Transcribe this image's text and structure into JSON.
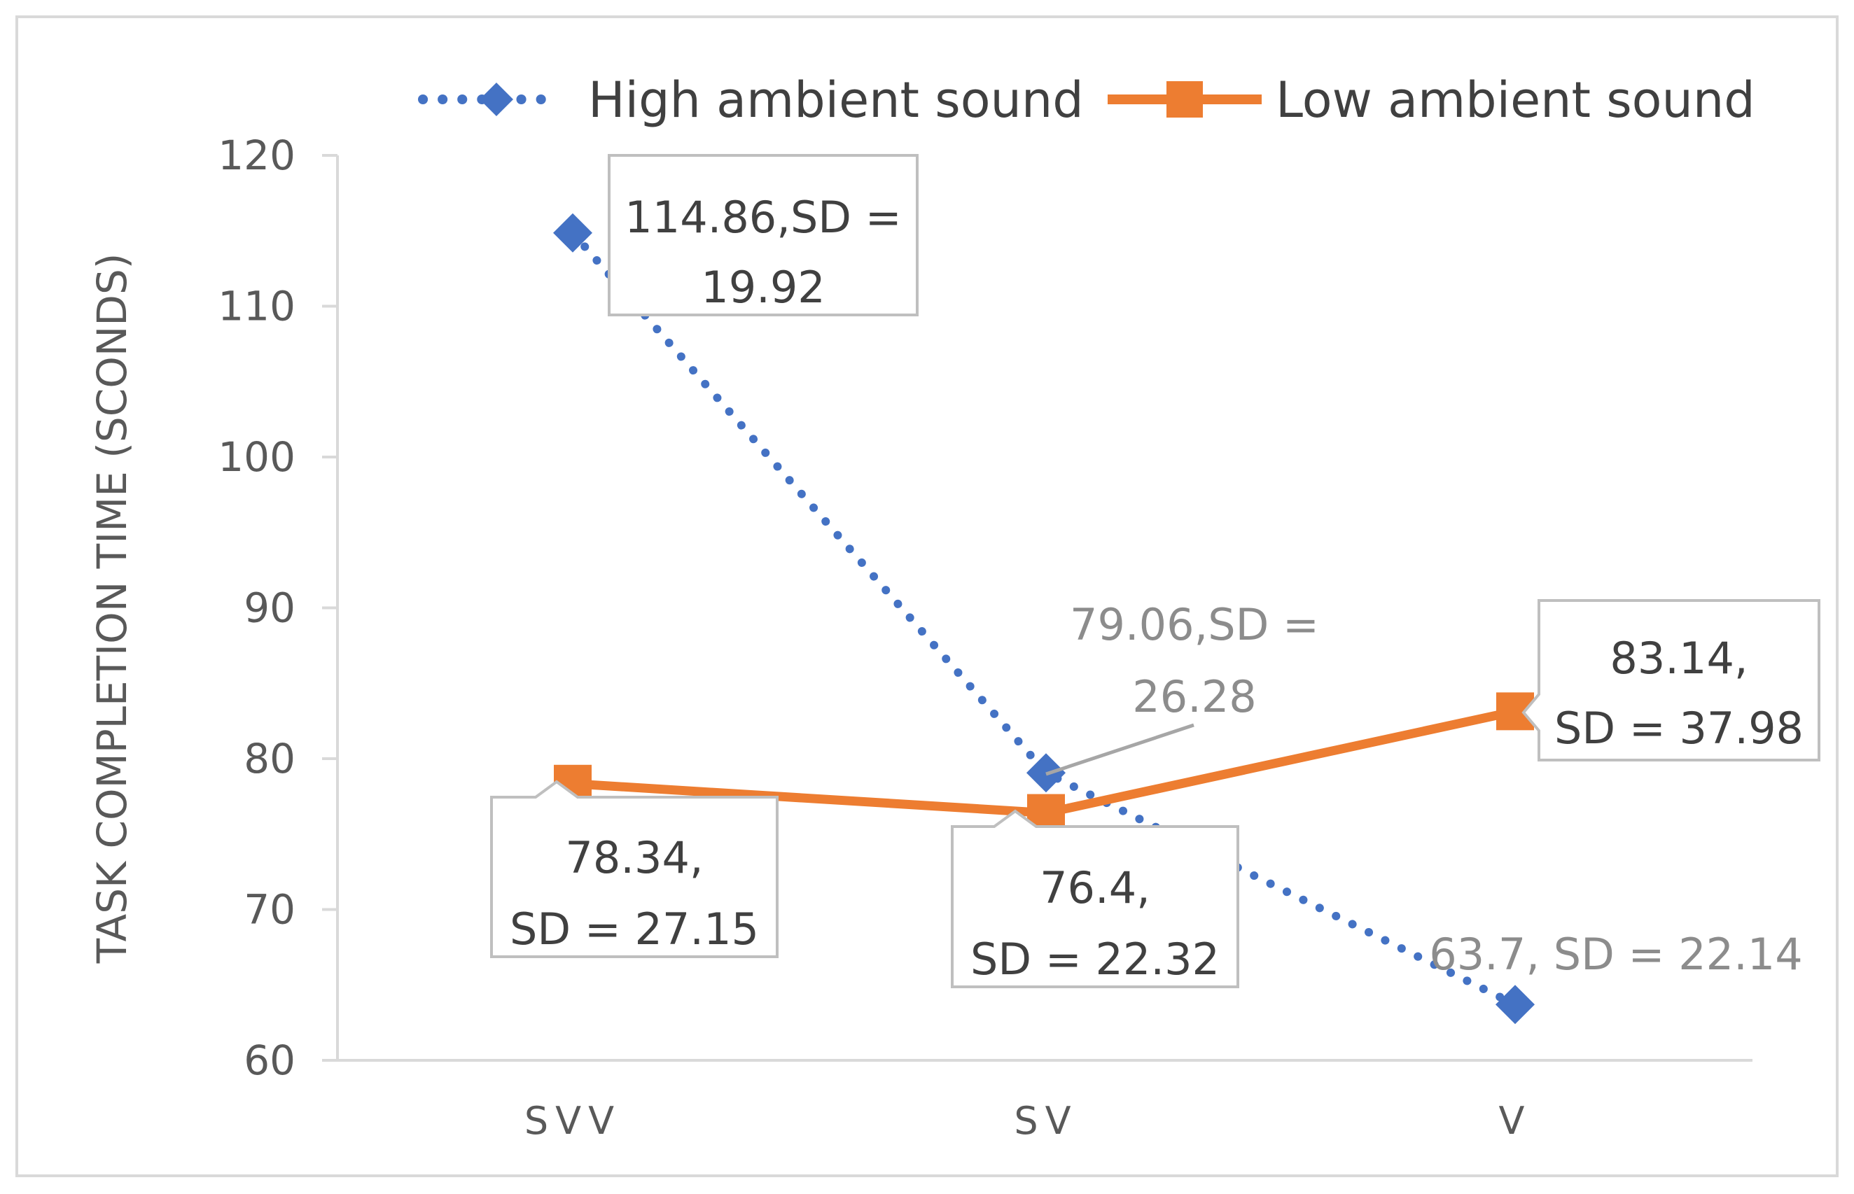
{
  "chart_data": {
    "type": "line",
    "title": "",
    "xlabel": "",
    "ylabel": "TASK COMPLETION TIME (SCONDS)",
    "ylim": [
      60,
      120
    ],
    "yticks": [
      "60",
      "70",
      "80",
      "90",
      "100",
      "110",
      "120"
    ],
    "categories": [
      "SVV",
      "SV",
      "V"
    ],
    "legend_position": "top",
    "series": [
      {
        "name": "High ambient sound",
        "color": "#4472c4",
        "line_style": "dotted",
        "marker": "diamond",
        "values": [
          114.86,
          79.06,
          63.7
        ],
        "labels": [
          [
            "114.86,SD =",
            "19.92"
          ],
          [
            "79.06,SD =",
            "26.28"
          ],
          [
            "63.7, SD = 22.14"
          ]
        ]
      },
      {
        "name": "Low ambient sound",
        "color": "#ed7d31",
        "line_style": "solid",
        "marker": "square",
        "values": [
          78.34,
          76.4,
          83.14
        ],
        "labels": [
          [
            "78.34,",
            "SD = 27.15"
          ],
          [
            "76.4,",
            "SD = 22.32"
          ],
          [
            "83.14,",
            "SD = 37.98"
          ]
        ]
      }
    ]
  }
}
